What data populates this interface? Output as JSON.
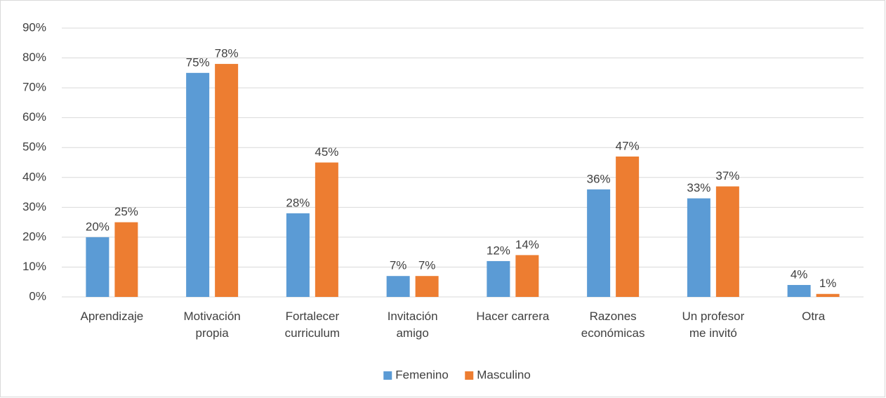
{
  "chart_data": {
    "type": "bar",
    "categories": [
      "Aprendizaje",
      "Motivación\npropia",
      "Fortalecer\ncurriculum",
      "Invitación\namigo",
      "Hacer carrera",
      "Razones\neconómicas",
      "Un profesor\nme invitó",
      "Otra"
    ],
    "series": [
      {
        "name": "Femenino",
        "color": "#5b9bd5",
        "values": [
          20,
          75,
          28,
          7,
          12,
          36,
          33,
          4
        ],
        "value_labels": [
          "20%",
          "75%",
          "28%",
          "7%",
          "12%",
          "36%",
          "33%",
          "4%"
        ]
      },
      {
        "name": "Masculino",
        "color": "#ed7d31",
        "values": [
          25,
          78,
          45,
          7,
          14,
          47,
          37,
          1
        ],
        "value_labels": [
          "25%",
          "78%",
          "45%",
          "7%",
          "14%",
          "47%",
          "37%",
          "1%"
        ]
      }
    ],
    "ylim": [
      0,
      90
    ],
    "yticks": [
      {
        "value": 0,
        "label": "0%"
      },
      {
        "value": 10,
        "label": "10%"
      },
      {
        "value": 20,
        "label": "20%"
      },
      {
        "value": 30,
        "label": "30%"
      },
      {
        "value": 40,
        "label": "40%"
      },
      {
        "value": 50,
        "label": "50%"
      },
      {
        "value": 60,
        "label": "60%"
      },
      {
        "value": 70,
        "label": "70%"
      },
      {
        "value": 80,
        "label": "80%"
      },
      {
        "value": 90,
        "label": "90%"
      }
    ],
    "grid": true,
    "legend": "bottom"
  }
}
